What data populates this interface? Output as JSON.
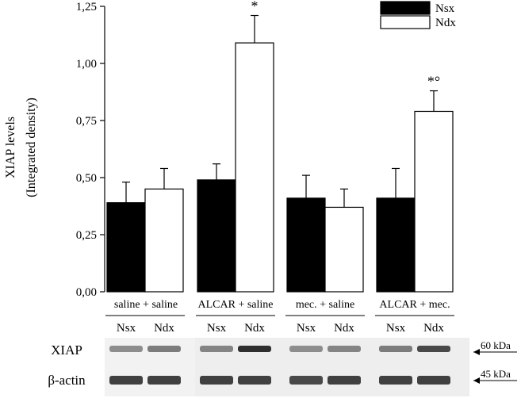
{
  "chart_data": {
    "type": "bar",
    "title": "",
    "ylabel_line1": "XIAP levels",
    "ylabel_line2": "(Integrated density)",
    "ylim": [
      0,
      1.25
    ],
    "yticks": [
      "0,00",
      "0,25",
      "0,50",
      "0,75",
      "1,00",
      "1,25"
    ],
    "ytick_values": [
      0,
      0.25,
      0.5,
      0.75,
      1.0,
      1.25
    ],
    "categories": [
      "saline + saline",
      "ALCAR + saline",
      "mec. + saline",
      "ALCAR + mec."
    ],
    "series": [
      {
        "name": "Nsx",
        "color": "#000000",
        "values": [
          0.39,
          0.49,
          0.41,
          0.41
        ],
        "errors": [
          0.09,
          0.07,
          0.1,
          0.13
        ]
      },
      {
        "name": "Ndx",
        "color": "#ffffff",
        "values": [
          0.45,
          1.09,
          0.37,
          0.79
        ],
        "errors": [
          0.09,
          0.12,
          0.08,
          0.09
        ]
      }
    ],
    "annotations": [
      {
        "category": 1,
        "series": 1,
        "text": "*"
      },
      {
        "category": 3,
        "series": 1,
        "text": "*°"
      }
    ],
    "legend_position": "top-right",
    "grid": false
  },
  "blot": {
    "lane_labels": [
      "Nsx",
      "Ndx",
      "Nsx",
      "Ndx",
      "Nsx",
      "Ndx",
      "Nsx",
      "Ndx"
    ],
    "rows": [
      {
        "label": "XIAP",
        "marker": "60 kDa"
      },
      {
        "label": "β-actin",
        "marker": "45 kDa"
      }
    ]
  }
}
